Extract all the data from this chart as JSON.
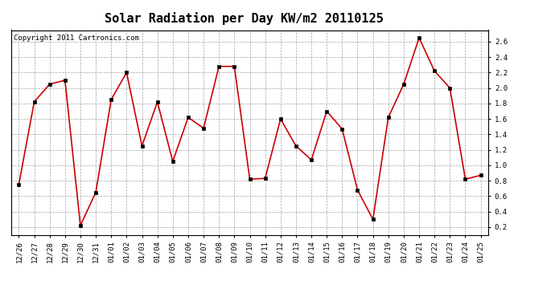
{
  "title": "Solar Radiation per Day KW/m2 20110125",
  "copyright": "Copyright 2011 Cartronics.com",
  "labels": [
    "12/26",
    "12/27",
    "12/28",
    "12/29",
    "12/30",
    "12/31",
    "01/01",
    "01/02",
    "01/03",
    "01/04",
    "01/05",
    "01/06",
    "01/07",
    "01/08",
    "01/09",
    "01/10",
    "01/11",
    "01/12",
    "01/13",
    "01/14",
    "01/15",
    "01/16",
    "01/17",
    "01/18",
    "01/19",
    "01/20",
    "01/21",
    "01/22",
    "01/23",
    "01/24",
    "01/25"
  ],
  "values": [
    0.75,
    1.82,
    2.05,
    2.1,
    0.22,
    0.65,
    1.85,
    2.2,
    1.25,
    1.82,
    1.05,
    1.62,
    1.48,
    2.28,
    2.28,
    0.82,
    0.83,
    1.6,
    1.25,
    1.07,
    1.7,
    1.47,
    0.68,
    0.3,
    1.62,
    2.05,
    2.65,
    2.22,
    2.0,
    0.82,
    0.87
  ],
  "line_color": "#cc0000",
  "marker_color": "#000000",
  "bg_color": "#ffffff",
  "plot_bg_color": "#ffffff",
  "grid_color": "#999999",
  "ylim": [
    0.1,
    2.75
  ],
  "yticks": [
    0.2,
    0.4,
    0.6,
    0.8,
    1.0,
    1.2,
    1.4,
    1.6,
    1.8,
    2.0,
    2.2,
    2.4,
    2.6
  ],
  "title_fontsize": 11,
  "copyright_fontsize": 6.5,
  "tick_fontsize": 6.5
}
